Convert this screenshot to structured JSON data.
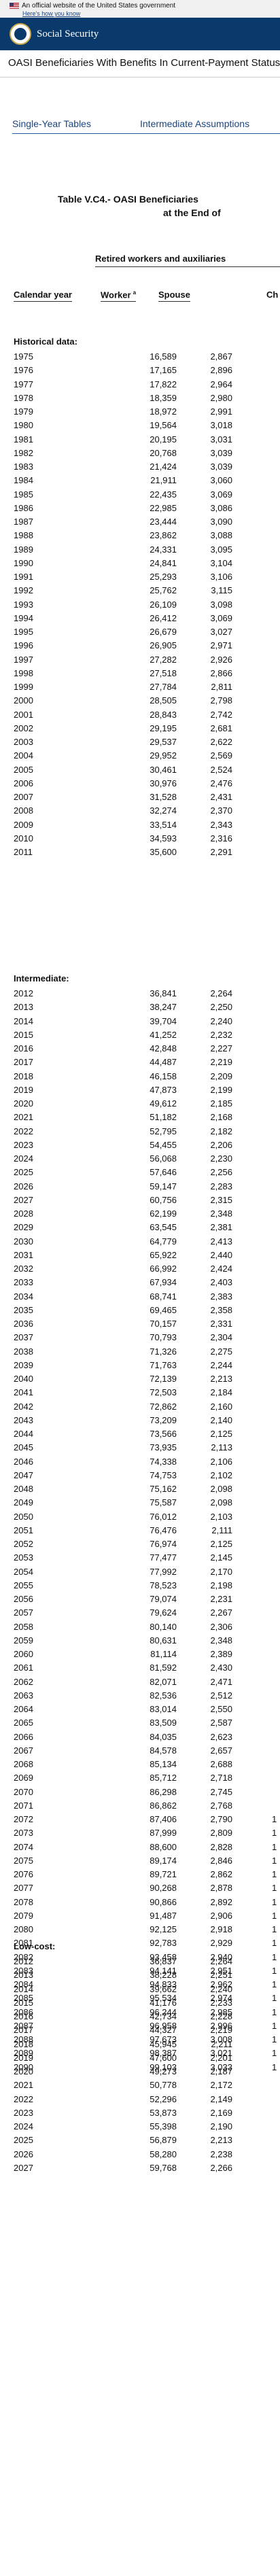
{
  "banner": {
    "text": "An official website of the United States government",
    "how": "Here's how you know"
  },
  "header": {
    "agency": "Social Security"
  },
  "page": {
    "title": "OASI Beneficiaries With Benefits In Current-Payment Status"
  },
  "tabs": [
    "Single-Year Tables",
    "Intermediate Assumptions"
  ],
  "table": {
    "title_line1": "Table V.C4.- OASI Beneficiaries",
    "title_line2": "at the End of",
    "group_header": "Retired workers and auxiliaries",
    "col_year": "Calendar year",
    "col_worker": "Worker",
    "col_worker_note": "a",
    "col_spouse": "Spouse",
    "col_child": "Ch"
  },
  "sections": [
    {
      "label": "Historical data:",
      "rows": [
        [
          "1975",
          "16,589",
          "2,867",
          ""
        ],
        [
          "1976",
          "17,165",
          "2,896",
          ""
        ],
        [
          "1977",
          "17,822",
          "2,964",
          ""
        ],
        [
          "1978",
          "18,359",
          "2,980",
          ""
        ],
        [
          "1979",
          "18,972",
          "2,991",
          ""
        ],
        [
          "1980",
          "19,564",
          "3,018",
          ""
        ],
        [
          "1981",
          "20,195",
          "3,031",
          ""
        ],
        [
          "1982",
          "20,768",
          "3,039",
          ""
        ],
        [
          "1983",
          "21,424",
          "3,039",
          ""
        ],
        [
          "1984",
          "21,911",
          "3,060",
          ""
        ],
        [
          "1985",
          "22,435",
          "3,069",
          ""
        ],
        [
          "1986",
          "22,985",
          "3,086",
          ""
        ],
        [
          "1987",
          "23,444",
          "3,090",
          ""
        ],
        [
          "1988",
          "23,862",
          "3,088",
          ""
        ],
        [
          "1989",
          "24,331",
          "3,095",
          ""
        ],
        [
          "1990",
          "24,841",
          "3,104",
          ""
        ],
        [
          "1991",
          "25,293",
          "3,106",
          ""
        ],
        [
          "1992",
          "25,762",
          "3,115",
          ""
        ],
        [
          "1993",
          "26,109",
          "3,098",
          ""
        ],
        [
          "1994",
          "26,412",
          "3,069",
          ""
        ],
        [
          "1995",
          "26,679",
          "3,027",
          ""
        ],
        [
          "1996",
          "26,905",
          "2,971",
          ""
        ],
        [
          "1997",
          "27,282",
          "2,926",
          ""
        ],
        [
          "1998",
          "27,518",
          "2,866",
          ""
        ],
        [
          "1999",
          "27,784",
          "2,811",
          ""
        ],
        [
          "2000",
          "28,505",
          "2,798",
          ""
        ],
        [
          "2001",
          "28,843",
          "2,742",
          ""
        ],
        [
          "2002",
          "29,195",
          "2,681",
          ""
        ],
        [
          "2003",
          "29,537",
          "2,622",
          ""
        ],
        [
          "2004",
          "29,952",
          "2,569",
          ""
        ],
        [
          "2005",
          "30,461",
          "2,524",
          ""
        ],
        [
          "2006",
          "30,976",
          "2,476",
          ""
        ],
        [
          "2007",
          "31,528",
          "2,431",
          ""
        ],
        [
          "2008",
          "32,274",
          "2,370",
          ""
        ],
        [
          "2009",
          "33,514",
          "2,343",
          ""
        ],
        [
          "2010",
          "34,593",
          "2,316",
          ""
        ],
        [
          "2011",
          "35,600",
          "2,291",
          ""
        ]
      ]
    },
    {
      "label": "Intermediate:",
      "rows": [
        [
          "2012",
          "36,841",
          "2,264",
          ""
        ],
        [
          "2013",
          "38,247",
          "2,250",
          ""
        ],
        [
          "2014",
          "39,704",
          "2,240",
          ""
        ],
        [
          "2015",
          "41,252",
          "2,232",
          ""
        ],
        [
          "2016",
          "42,848",
          "2,227",
          ""
        ],
        [
          "2017",
          "44,487",
          "2,219",
          ""
        ],
        [
          "2018",
          "46,158",
          "2,209",
          ""
        ],
        [
          "2019",
          "47,873",
          "2,199",
          ""
        ],
        [
          "2020",
          "49,612",
          "2,185",
          ""
        ],
        [
          "2021",
          "51,182",
          "2,168",
          ""
        ],
        [
          "2022",
          "52,795",
          "2,182",
          ""
        ],
        [
          "2023",
          "54,455",
          "2,206",
          ""
        ],
        [
          "2024",
          "56,068",
          "2,230",
          ""
        ],
        [
          "2025",
          "57,646",
          "2,256",
          ""
        ],
        [
          "2026",
          "59,147",
          "2,283",
          ""
        ],
        [
          "2027",
          "60,756",
          "2,315",
          ""
        ],
        [
          "2028",
          "62,199",
          "2,348",
          ""
        ],
        [
          "2029",
          "63,545",
          "2,381",
          ""
        ],
        [
          "2030",
          "64,779",
          "2,413",
          ""
        ],
        [
          "2031",
          "65,922",
          "2,440",
          ""
        ],
        [
          "2032",
          "66,992",
          "2,424",
          ""
        ],
        [
          "2033",
          "67,934",
          "2,403",
          ""
        ],
        [
          "2034",
          "68,741",
          "2,383",
          ""
        ],
        [
          "2035",
          "69,465",
          "2,358",
          ""
        ],
        [
          "2036",
          "70,157",
          "2,331",
          ""
        ],
        [
          "2037",
          "70,793",
          "2,304",
          ""
        ],
        [
          "2038",
          "71,326",
          "2,275",
          ""
        ],
        [
          "2039",
          "71,763",
          "2,244",
          ""
        ],
        [
          "2040",
          "72,139",
          "2,213",
          ""
        ],
        [
          "2041",
          "72,503",
          "2,184",
          ""
        ],
        [
          "2042",
          "72,862",
          "2,160",
          ""
        ],
        [
          "2043",
          "73,209",
          "2,140",
          ""
        ],
        [
          "2044",
          "73,566",
          "2,125",
          ""
        ],
        [
          "2045",
          "73,935",
          "2,113",
          ""
        ],
        [
          "2046",
          "74,338",
          "2,106",
          ""
        ],
        [
          "2047",
          "74,753",
          "2,102",
          ""
        ],
        [
          "2048",
          "75,162",
          "2,098",
          ""
        ],
        [
          "2049",
          "75,587",
          "2,098",
          ""
        ],
        [
          "2050",
          "76,012",
          "2,103",
          ""
        ],
        [
          "2051",
          "76,476",
          "2,111",
          ""
        ],
        [
          "2052",
          "76,974",
          "2,125",
          ""
        ],
        [
          "2053",
          "77,477",
          "2,145",
          ""
        ],
        [
          "2054",
          "77,992",
          "2,170",
          ""
        ],
        [
          "2055",
          "78,523",
          "2,198",
          ""
        ],
        [
          "2056",
          "79,074",
          "2,231",
          ""
        ],
        [
          "2057",
          "79,624",
          "2,267",
          ""
        ],
        [
          "2058",
          "80,140",
          "2,306",
          ""
        ],
        [
          "2059",
          "80,631",
          "2,348",
          ""
        ],
        [
          "2060",
          "81,114",
          "2,389",
          ""
        ],
        [
          "2061",
          "81,592",
          "2,430",
          ""
        ],
        [
          "2062",
          "82,071",
          "2,471",
          ""
        ],
        [
          "2063",
          "82,536",
          "2,512",
          ""
        ],
        [
          "2064",
          "83,014",
          "2,550",
          ""
        ],
        [
          "2065",
          "83,509",
          "2,587",
          ""
        ],
        [
          "2066",
          "84,035",
          "2,623",
          ""
        ],
        [
          "2067",
          "84,578",
          "2,657",
          ""
        ],
        [
          "2068",
          "85,134",
          "2,688",
          ""
        ],
        [
          "2069",
          "85,712",
          "2,718",
          ""
        ],
        [
          "2070",
          "86,298",
          "2,745",
          ""
        ],
        [
          "2071",
          "86,862",
          "2,768",
          ""
        ],
        [
          "2072",
          "87,406",
          "2,790",
          "1"
        ],
        [
          "2073",
          "87,999",
          "2,809",
          "1"
        ],
        [
          "2074",
          "88,600",
          "2,828",
          "1"
        ],
        [
          "2075",
          "89,174",
          "2,846",
          "1"
        ],
        [
          "2076",
          "89,721",
          "2,862",
          "1"
        ],
        [
          "2077",
          "90,268",
          "2,878",
          "1"
        ],
        [
          "2078",
          "90,866",
          "2,892",
          "1"
        ],
        [
          "2079",
          "91,487",
          "2,906",
          "1"
        ],
        [
          "2080",
          "92,125",
          "2,918",
          "1"
        ],
        [
          "2081",
          "92,783",
          "2,929",
          "1"
        ],
        [
          "2082",
          "93,458",
          "2,940",
          "1"
        ],
        [
          "2083",
          "94,141",
          "2,951",
          "1"
        ],
        [
          "2084",
          "94,833",
          "2,962",
          "1"
        ],
        [
          "2085",
          "95,534",
          "2,974",
          "1"
        ],
        [
          "2086",
          "96,244",
          "2,985",
          "1"
        ],
        [
          "2087",
          "96,958",
          "2,996",
          "1"
        ],
        [
          "2088",
          "97,673",
          "3,008",
          "1"
        ],
        [
          "2089",
          "98,387",
          "3,021",
          "1"
        ],
        [
          "2090",
          "99,103",
          "3,033",
          "1"
        ]
      ]
    },
    {
      "label": "Low-cost:",
      "rows": [
        [
          "2012",
          "36,837",
          "2,264",
          ""
        ],
        [
          "2013",
          "38,228",
          "2,251",
          ""
        ],
        [
          "2014",
          "39,662",
          "2,240",
          ""
        ],
        [
          "2015",
          "41,176",
          "2,233",
          ""
        ],
        [
          "2016",
          "42,734",
          "2,228",
          ""
        ],
        [
          "2017",
          "44,327",
          "2,219",
          ""
        ],
        [
          "2018",
          "45,945",
          "2,211",
          ""
        ],
        [
          "2019",
          "47,600",
          "2,201",
          ""
        ],
        [
          "2020",
          "49,273",
          "2,187",
          ""
        ],
        [
          "2021",
          "50,778",
          "2,172",
          ""
        ],
        [
          "2022",
          "52,296",
          "2,149",
          ""
        ],
        [
          "2023",
          "53,873",
          "2,169",
          ""
        ],
        [
          "2024",
          "55,398",
          "2,190",
          ""
        ],
        [
          "2025",
          "56,879",
          "2,213",
          ""
        ],
        [
          "2026",
          "58,280",
          "2,238",
          ""
        ],
        [
          "2027",
          "59,768",
          "2,266",
          ""
        ]
      ]
    }
  ]
}
